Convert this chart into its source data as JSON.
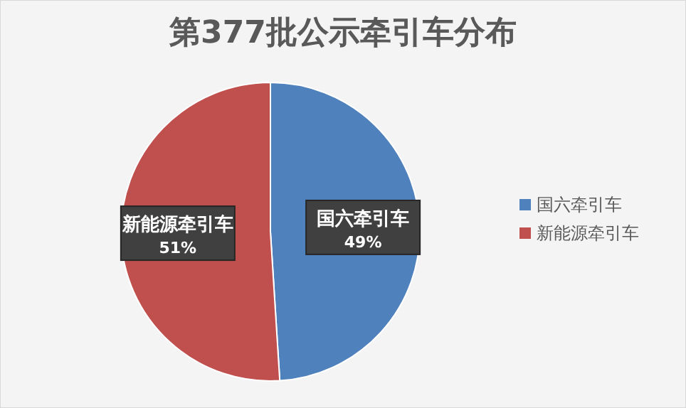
{
  "chart_data": {
    "type": "pie",
    "title": "第377批公示牵引车分布",
    "categories": [
      "国六牵引车",
      "新能源牵引车"
    ],
    "values": [
      49,
      51
    ],
    "colors": [
      "#4f81bd",
      "#c0504d"
    ],
    "value_labels": [
      "49%",
      "51%"
    ],
    "legend": "right"
  }
}
